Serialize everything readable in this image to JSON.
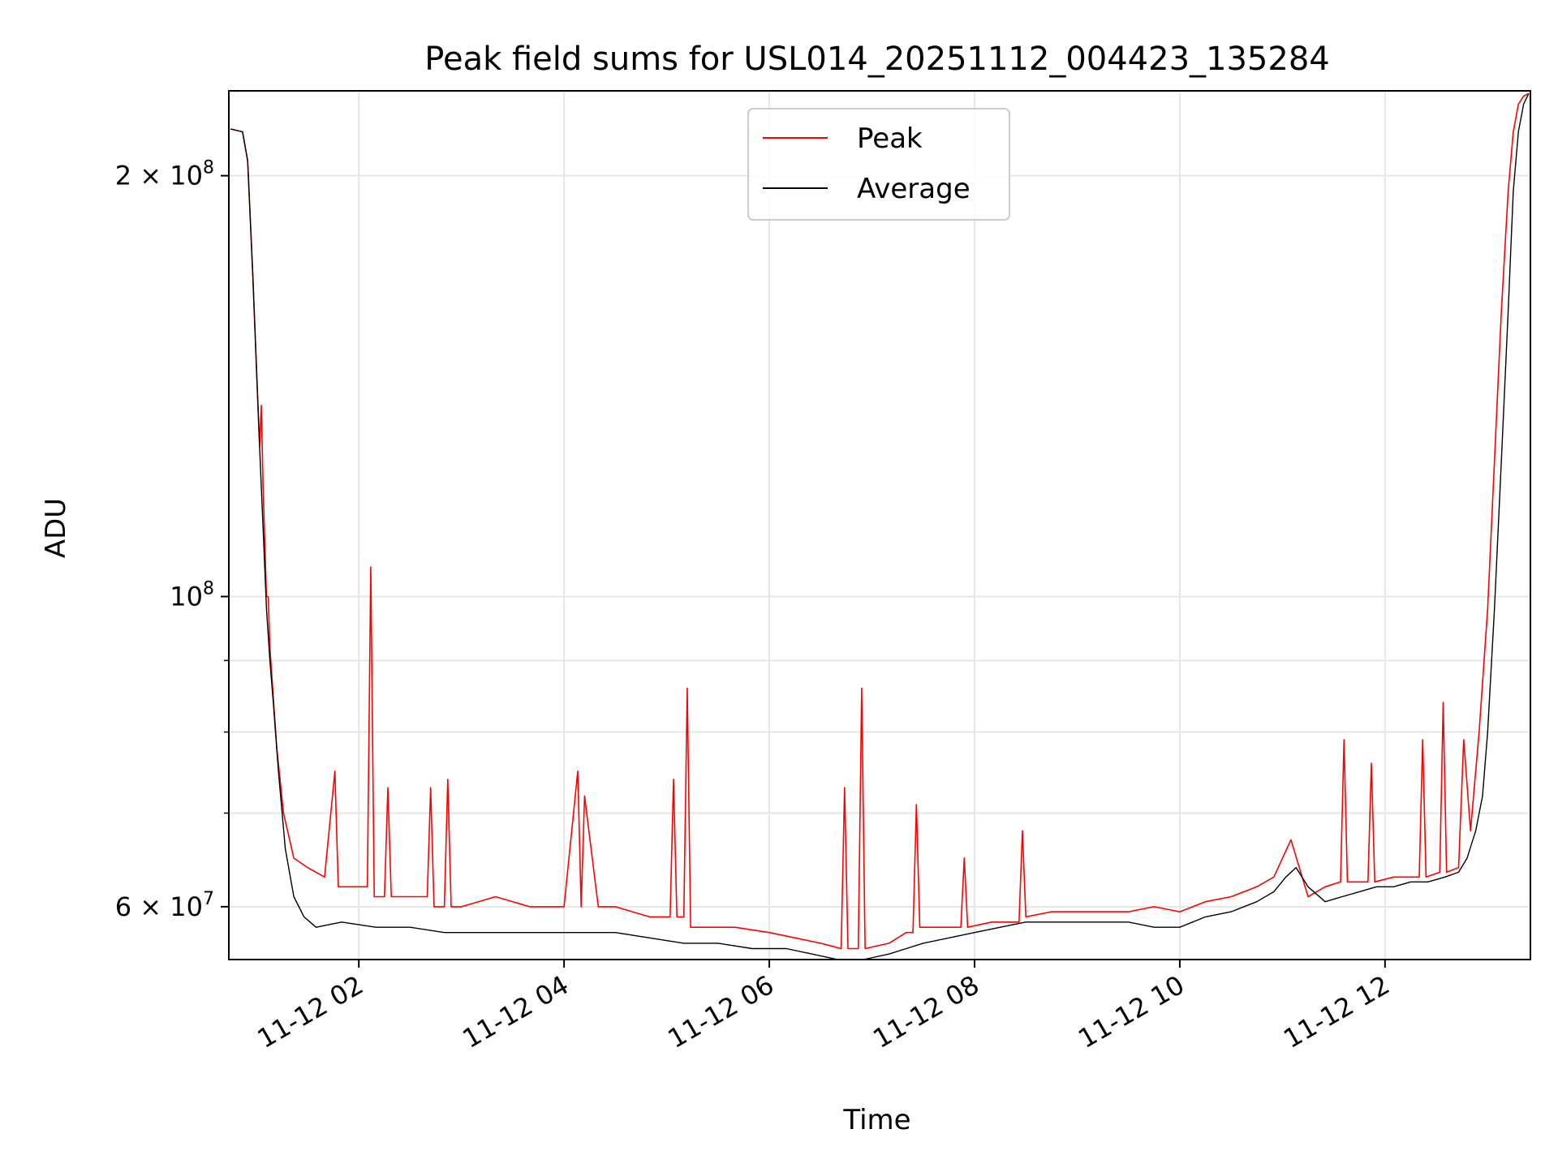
{
  "chart_data": {
    "type": "line",
    "title": "Peak field sums for USL014_20251112_004423_135284",
    "xlabel": "Time",
    "ylabel": "ADU",
    "yscale": "log",
    "grid": true,
    "legend_position": "top-center",
    "xlim": [
      "2025-11-12T00:44",
      "2025-11-12T13:25"
    ],
    "ylim": [
      55000000,
      230000000
    ],
    "x_ticks": [
      "11-12 02",
      "11-12 04",
      "11-12 06",
      "11-12 08",
      "11-12 10",
      "11-12 12"
    ],
    "x_tick_times": [
      "2025-11-12T02:00",
      "2025-11-12T04:00",
      "2025-11-12T06:00",
      "2025-11-12T08:00",
      "2025-11-12T10:00",
      "2025-11-12T12:00"
    ],
    "y_ticks_labeled": [
      {
        "value": 60000000,
        "mantissa": "6",
        "exponent": "7"
      },
      {
        "value": 100000000,
        "mantissa": "",
        "exponent": "8"
      },
      {
        "value": 200000000,
        "mantissa": "2",
        "exponent": "8"
      }
    ],
    "y_ticks_minor": [
      70000000,
      80000000,
      90000000
    ],
    "series": [
      {
        "name": "Peak",
        "color": "#ff0000",
        "x": [
          "2025-11-12T00:45",
          "2025-11-12T00:52",
          "2025-11-12T00:55",
          "2025-11-12T00:58",
          "2025-11-12T01:02",
          "2025-11-12T01:03",
          "2025-11-12T01:04",
          "2025-11-12T01:06",
          "2025-11-12T01:07",
          "2025-11-12T01:08",
          "2025-11-12T01:12",
          "2025-11-12T01:16",
          "2025-11-12T01:22",
          "2025-11-12T01:30",
          "2025-11-12T01:40",
          "2025-11-12T01:46",
          "2025-11-12T01:48",
          "2025-11-12T01:55",
          "2025-11-12T02:05",
          "2025-11-12T02:07",
          "2025-11-12T02:09",
          "2025-11-12T02:15",
          "2025-11-12T02:17",
          "2025-11-12T02:19",
          "2025-11-12T02:30",
          "2025-11-12T02:40",
          "2025-11-12T02:42",
          "2025-11-12T02:44",
          "2025-11-12T02:50",
          "2025-11-12T02:52",
          "2025-11-12T02:54",
          "2025-11-12T03:00",
          "2025-11-12T03:20",
          "2025-11-12T03:40",
          "2025-11-12T04:00",
          "2025-11-12T04:08",
          "2025-11-12T04:10",
          "2025-11-12T04:12",
          "2025-11-12T04:20",
          "2025-11-12T04:30",
          "2025-11-12T04:50",
          "2025-11-12T05:02",
          "2025-11-12T05:04",
          "2025-11-12T05:06",
          "2025-11-12T05:10",
          "2025-11-12T05:12",
          "2025-11-12T05:14",
          "2025-11-12T05:20",
          "2025-11-12T05:40",
          "2025-11-12T06:00",
          "2025-11-12T06:15",
          "2025-11-12T06:30",
          "2025-11-12T06:42",
          "2025-11-12T06:44",
          "2025-11-12T06:46",
          "2025-11-12T06:52",
          "2025-11-12T06:54",
          "2025-11-12T06:56",
          "2025-11-12T07:10",
          "2025-11-12T07:20",
          "2025-11-12T07:24",
          "2025-11-12T07:26",
          "2025-11-12T07:28",
          "2025-11-12T07:40",
          "2025-11-12T07:52",
          "2025-11-12T07:54",
          "2025-11-12T07:56",
          "2025-11-12T08:10",
          "2025-11-12T08:26",
          "2025-11-12T08:28",
          "2025-11-12T08:30",
          "2025-11-12T08:45",
          "2025-11-12T09:00",
          "2025-11-12T09:15",
          "2025-11-12T09:30",
          "2025-11-12T09:45",
          "2025-11-12T10:00",
          "2025-11-12T10:15",
          "2025-11-12T10:30",
          "2025-11-12T10:45",
          "2025-11-12T10:55",
          "2025-11-12T11:05",
          "2025-11-12T11:15",
          "2025-11-12T11:20",
          "2025-11-12T11:25",
          "2025-11-12T11:34",
          "2025-11-12T11:36",
          "2025-11-12T11:38",
          "2025-11-12T11:50",
          "2025-11-12T11:52",
          "2025-11-12T11:54",
          "2025-11-12T12:05",
          "2025-11-12T12:20",
          "2025-11-12T12:22",
          "2025-11-12T12:24",
          "2025-11-12T12:32",
          "2025-11-12T12:34",
          "2025-11-12T12:36",
          "2025-11-12T12:43",
          "2025-11-12T12:46",
          "2025-11-12T12:50",
          "2025-11-12T12:55",
          "2025-11-12T13:00",
          "2025-11-12T13:04",
          "2025-11-12T13:08",
          "2025-11-12T13:12",
          "2025-11-12T13:15",
          "2025-11-12T13:18",
          "2025-11-12T13:21",
          "2025-11-12T13:24"
        ],
        "y": [
          216000000,
          215000000,
          205000000,
          170000000,
          128000000,
          137000000,
          120000000,
          100000000,
          100000000,
          92000000,
          78000000,
          70000000,
          65000000,
          64000000,
          63000000,
          75000000,
          62000000,
          62000000,
          62000000,
          105000000,
          61000000,
          61000000,
          73000000,
          61000000,
          61000000,
          61000000,
          73000000,
          60000000,
          60000000,
          74000000,
          60000000,
          60000000,
          61000000,
          60000000,
          60000000,
          75000000,
          60000000,
          72000000,
          60000000,
          60000000,
          59000000,
          59000000,
          74000000,
          59000000,
          59000000,
          86000000,
          58000000,
          58000000,
          58000000,
          57500000,
          57000000,
          56500000,
          56000000,
          73000000,
          56000000,
          56000000,
          86000000,
          56000000,
          56500000,
          57500000,
          57500000,
          71000000,
          58000000,
          58000000,
          58000000,
          65000000,
          58000000,
          58500000,
          58500000,
          68000000,
          59000000,
          59500000,
          59500000,
          59500000,
          59500000,
          60000000,
          59500000,
          60500000,
          61000000,
          62000000,
          63000000,
          67000000,
          61000000,
          61500000,
          62000000,
          62500000,
          79000000,
          62500000,
          62500000,
          76000000,
          62500000,
          63000000,
          63000000,
          79000000,
          63000000,
          63500000,
          84000000,
          63500000,
          64000000,
          79000000,
          68000000,
          80000000,
          98000000,
          125000000,
          160000000,
          195000000,
          215000000,
          225000000,
          228000000,
          229000000
        ]
      },
      {
        "name": "Average",
        "color": "#000000",
        "x": [
          "2025-11-12T00:45",
          "2025-11-12T00:52",
          "2025-11-12T00:55",
          "2025-11-12T00:58",
          "2025-11-12T01:02",
          "2025-11-12T01:04",
          "2025-11-12T01:06",
          "2025-11-12T01:08",
          "2025-11-12T01:10",
          "2025-11-12T01:13",
          "2025-11-12T01:17",
          "2025-11-12T01:22",
          "2025-11-12T01:28",
          "2025-11-12T01:35",
          "2025-11-12T01:50",
          "2025-11-12T02:10",
          "2025-11-12T02:30",
          "2025-11-12T02:50",
          "2025-11-12T03:10",
          "2025-11-12T03:30",
          "2025-11-12T03:50",
          "2025-11-12T04:10",
          "2025-11-12T04:30",
          "2025-11-12T04:50",
          "2025-11-12T05:10",
          "2025-11-12T05:30",
          "2025-11-12T05:50",
          "2025-11-12T06:10",
          "2025-11-12T06:25",
          "2025-11-12T06:40",
          "2025-11-12T06:55",
          "2025-11-12T07:10",
          "2025-11-12T07:20",
          "2025-11-12T07:30",
          "2025-11-12T07:45",
          "2025-11-12T08:00",
          "2025-11-12T08:15",
          "2025-11-12T08:30",
          "2025-11-12T08:45",
          "2025-11-12T09:00",
          "2025-11-12T09:15",
          "2025-11-12T09:30",
          "2025-11-12T09:45",
          "2025-11-12T10:00",
          "2025-11-12T10:15",
          "2025-11-12T10:30",
          "2025-11-12T10:45",
          "2025-11-12T10:55",
          "2025-11-12T11:02",
          "2025-11-12T11:08",
          "2025-11-12T11:15",
          "2025-11-12T11:25",
          "2025-11-12T11:35",
          "2025-11-12T11:45",
          "2025-11-12T11:55",
          "2025-11-12T12:05",
          "2025-11-12T12:15",
          "2025-11-12T12:25",
          "2025-11-12T12:35",
          "2025-11-12T12:43",
          "2025-11-12T12:48",
          "2025-11-12T12:53",
          "2025-11-12T12:57",
          "2025-11-12T13:00",
          "2025-11-12T13:04",
          "2025-11-12T13:08",
          "2025-11-12T13:12",
          "2025-11-12T13:15",
          "2025-11-12T13:18",
          "2025-11-12T13:21",
          "2025-11-12T13:24"
        ],
        "y": [
          216000000,
          215000000,
          205000000,
          170000000,
          128000000,
          112000000,
          98000000,
          90000000,
          84000000,
          75000000,
          66000000,
          61000000,
          59000000,
          58000000,
          58500000,
          58000000,
          58000000,
          57500000,
          57500000,
          57500000,
          57500000,
          57500000,
          57500000,
          57000000,
          56500000,
          56500000,
          56000000,
          56000000,
          55500000,
          55000000,
          55000000,
          55500000,
          56000000,
          56500000,
          57000000,
          57500000,
          58000000,
          58500000,
          58500000,
          58500000,
          58500000,
          58500000,
          58000000,
          58000000,
          59000000,
          59500000,
          60500000,
          61500000,
          63000000,
          64000000,
          62000000,
          60500000,
          61000000,
          61500000,
          62000000,
          62000000,
          62500000,
          62500000,
          63000000,
          63500000,
          65000000,
          68000000,
          72000000,
          80000000,
          98000000,
          125000000,
          160000000,
          195000000,
          215000000,
          225000000,
          229000000
        ]
      }
    ]
  }
}
